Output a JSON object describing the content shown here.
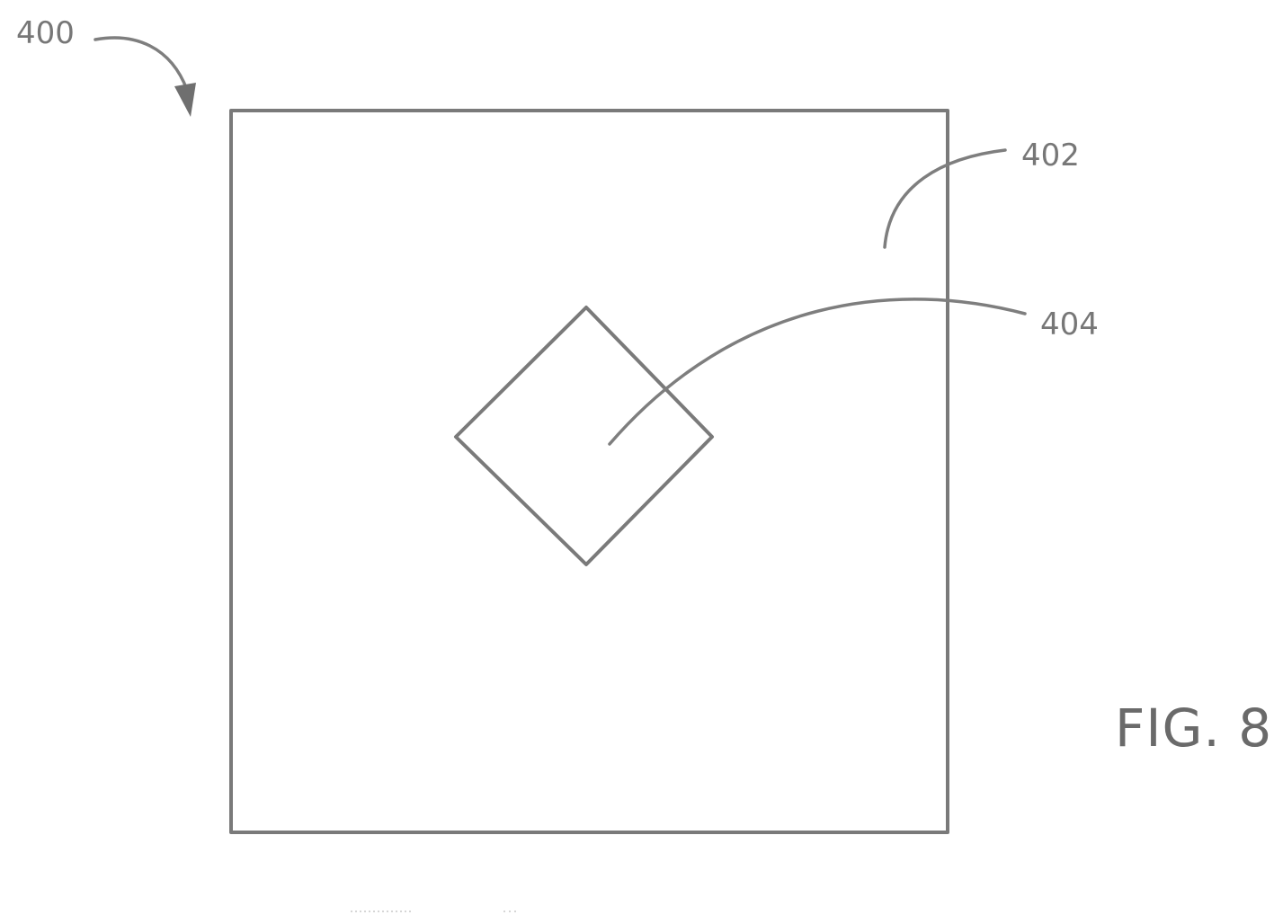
{
  "figure": {
    "label": "FIG. 8",
    "refs": {
      "device": "400",
      "frame": "402",
      "element": "404"
    }
  },
  "colors": {
    "line": "#7a7a7a",
    "text": "#777777",
    "background": "#ffffff"
  }
}
